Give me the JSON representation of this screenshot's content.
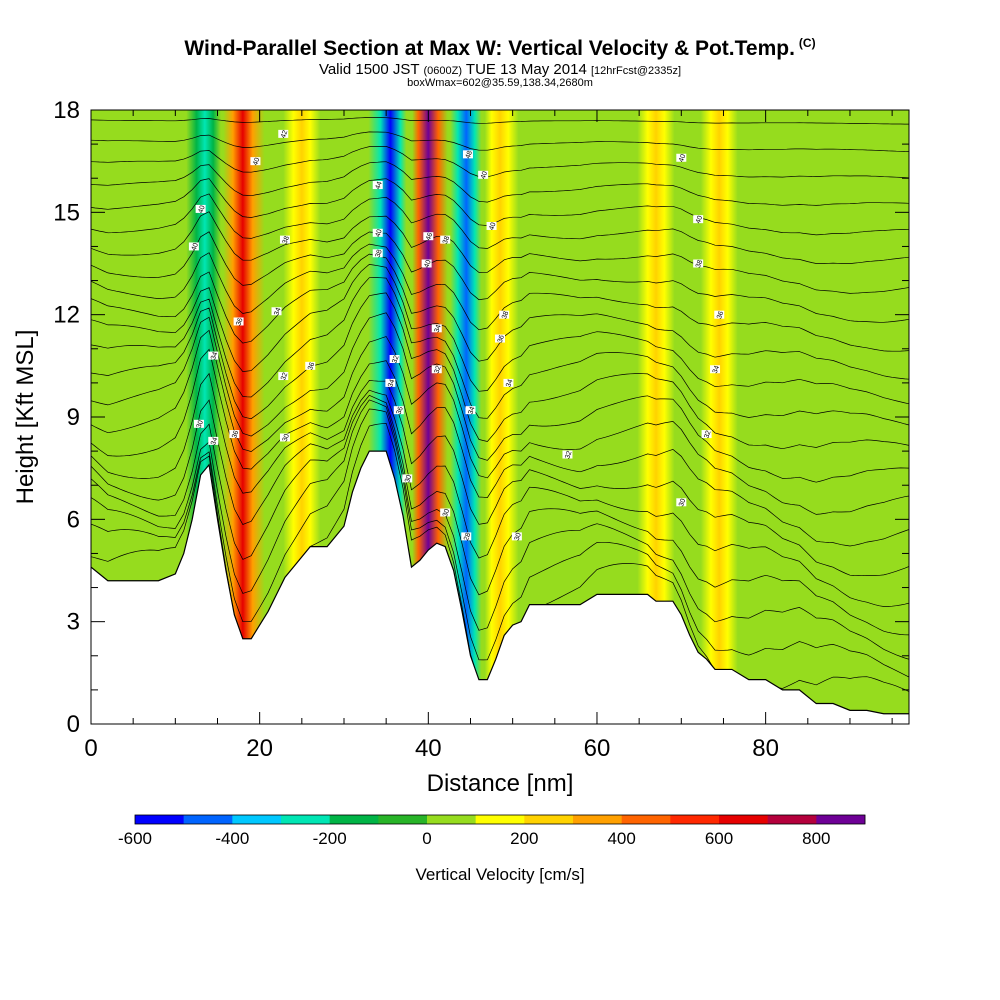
{
  "title": {
    "main": "Wind-Parallel Section at Max W: Vertical Velocity & Pot.Temp.",
    "copyright": "(C)",
    "valid_prefix": "Valid 1500 JST",
    "valid_utc": "(0600Z)",
    "valid_date": "TUE 13 May 2014",
    "forecast": "[12hrFcst@2335z]",
    "box_info": "boxWmax=602@35.59,138.34,2680m"
  },
  "chart_data": {
    "type": "heatmap",
    "xlabel": "Distance [nm]",
    "ylabel": "Height [Kft MSL]",
    "xlim": [
      0,
      97
    ],
    "ylim": [
      0,
      18
    ],
    "x_ticks": [
      0,
      20,
      40,
      60,
      80
    ],
    "y_ticks": [
      0,
      3,
      6,
      9,
      12,
      15,
      18
    ],
    "colorbar": {
      "label": "Vertical Velocity [cm/s]",
      "min": -600,
      "max": 900,
      "step": 100,
      "tick_values": [
        -600,
        -400,
        -200,
        0,
        200,
        400,
        600,
        800
      ],
      "colors": [
        "#0000ff",
        "#0064ff",
        "#00c8ff",
        "#00e6b4",
        "#00b446",
        "#28b428",
        "#96dc1e",
        "#ffff00",
        "#ffd200",
        "#ffa000",
        "#ff6400",
        "#ff2800",
        "#e60000",
        "#b4003c",
        "#6e0096"
      ]
    },
    "background_class": "0 to 100",
    "velocity_bands": [
      {
        "center": 13.5,
        "value": -300,
        "label": "downdraft"
      },
      {
        "center": 18.0,
        "value": 650,
        "label": "updraft"
      },
      {
        "center": 25.0,
        "value": 250,
        "label": "updraft"
      },
      {
        "center": 35.5,
        "value": -600,
        "label": "downdraft"
      },
      {
        "center": 40.0,
        "value": 850,
        "label": "updraft"
      },
      {
        "center": 44.5,
        "value": -450,
        "label": "downdraft"
      },
      {
        "center": 48.5,
        "value": 250,
        "label": "updraft"
      },
      {
        "center": 67.0,
        "value": 200,
        "label": "updraft"
      },
      {
        "center": 74.5,
        "value": 250,
        "label": "updraft"
      }
    ],
    "terrain": [
      [
        0,
        4.6
      ],
      [
        2,
        4.2
      ],
      [
        4,
        4.2
      ],
      [
        6,
        4.2
      ],
      [
        8,
        4.2
      ],
      [
        10,
        4.4
      ],
      [
        11,
        5.0
      ],
      [
        12,
        6.0
      ],
      [
        13,
        7.3
      ],
      [
        14,
        7.6
      ],
      [
        15,
        6.0
      ],
      [
        16,
        4.5
      ],
      [
        17,
        3.2
      ],
      [
        18,
        2.5
      ],
      [
        19,
        2.5
      ],
      [
        20,
        2.9
      ],
      [
        21,
        3.3
      ],
      [
        22,
        3.8
      ],
      [
        23,
        4.3
      ],
      [
        24,
        4.6
      ],
      [
        25,
        4.9
      ],
      [
        26,
        5.2
      ],
      [
        28,
        5.2
      ],
      [
        30,
        5.8
      ],
      [
        31,
        6.8
      ],
      [
        32,
        7.5
      ],
      [
        33,
        8.0
      ],
      [
        35,
        8.0
      ],
      [
        36,
        7.2
      ],
      [
        37,
        6.1
      ],
      [
        38,
        4.6
      ],
      [
        39,
        4.8
      ],
      [
        40,
        5.1
      ],
      [
        41,
        5.3
      ],
      [
        42,
        5.2
      ],
      [
        43,
        4.5
      ],
      [
        44,
        3.3
      ],
      [
        45,
        2.0
      ],
      [
        46,
        1.3
      ],
      [
        47,
        1.3
      ],
      [
        48,
        1.9
      ],
      [
        49,
        2.6
      ],
      [
        50,
        2.9
      ],
      [
        51,
        3.0
      ],
      [
        52,
        3.5
      ],
      [
        54,
        3.5
      ],
      [
        56,
        3.5
      ],
      [
        58,
        3.5
      ],
      [
        60,
        3.8
      ],
      [
        62,
        3.8
      ],
      [
        64,
        3.8
      ],
      [
        66,
        3.8
      ],
      [
        67,
        3.6
      ],
      [
        69,
        3.6
      ],
      [
        70,
        3.2
      ],
      [
        71,
        2.6
      ],
      [
        72,
        2.1
      ],
      [
        73,
        1.9
      ],
      [
        74,
        1.6
      ],
      [
        76,
        1.6
      ],
      [
        78,
        1.3
      ],
      [
        80,
        1.3
      ],
      [
        82,
        1.0
      ],
      [
        84,
        1.0
      ],
      [
        86,
        0.6
      ],
      [
        88,
        0.6
      ],
      [
        90,
        0.4
      ],
      [
        92,
        0.4
      ],
      [
        94,
        0.3
      ],
      [
        97,
        0.3
      ]
    ],
    "contours": {
      "variable": "potential temperature",
      "labels": [
        {
          "x": 13.0,
          "y": 15.1,
          "text": "40"
        },
        {
          "x": 12.2,
          "y": 14.0,
          "text": "40"
        },
        {
          "x": 19.5,
          "y": 16.5,
          "text": "40"
        },
        {
          "x": 22.8,
          "y": 17.3,
          "text": "42"
        },
        {
          "x": 23.0,
          "y": 14.2,
          "text": "38"
        },
        {
          "x": 22.0,
          "y": 12.1,
          "text": "34"
        },
        {
          "x": 17.5,
          "y": 11.8,
          "text": "36"
        },
        {
          "x": 14.5,
          "y": 10.8,
          "text": "34"
        },
        {
          "x": 26.0,
          "y": 10.5,
          "text": "36"
        },
        {
          "x": 22.8,
          "y": 10.2,
          "text": "32"
        },
        {
          "x": 12.8,
          "y": 8.8,
          "text": "30"
        },
        {
          "x": 14.5,
          "y": 8.3,
          "text": "34"
        },
        {
          "x": 17.0,
          "y": 8.5,
          "text": "36"
        },
        {
          "x": 23.0,
          "y": 8.4,
          "text": "30"
        },
        {
          "x": 34.0,
          "y": 15.8,
          "text": "44"
        },
        {
          "x": 34.0,
          "y": 14.4,
          "text": "40"
        },
        {
          "x": 34.0,
          "y": 13.8,
          "text": "38"
        },
        {
          "x": 36.0,
          "y": 10.7,
          "text": "32"
        },
        {
          "x": 35.5,
          "y": 10.0,
          "text": "34"
        },
        {
          "x": 36.5,
          "y": 9.2,
          "text": "36"
        },
        {
          "x": 37.5,
          "y": 7.2,
          "text": "30"
        },
        {
          "x": 40.0,
          "y": 14.3,
          "text": "46"
        },
        {
          "x": 39.8,
          "y": 13.5,
          "text": "40"
        },
        {
          "x": 41.0,
          "y": 11.6,
          "text": "34"
        },
        {
          "x": 41.0,
          "y": 10.4,
          "text": "32"
        },
        {
          "x": 42.0,
          "y": 14.2,
          "text": "38"
        },
        {
          "x": 44.7,
          "y": 16.7,
          "text": "48"
        },
        {
          "x": 46.5,
          "y": 16.1,
          "text": "40"
        },
        {
          "x": 47.5,
          "y": 14.6,
          "text": "40"
        },
        {
          "x": 49.0,
          "y": 12.0,
          "text": "38"
        },
        {
          "x": 48.5,
          "y": 11.3,
          "text": "36"
        },
        {
          "x": 49.5,
          "y": 10.0,
          "text": "34"
        },
        {
          "x": 45.0,
          "y": 9.2,
          "text": "34"
        },
        {
          "x": 42.0,
          "y": 6.2,
          "text": "30"
        },
        {
          "x": 44.5,
          "y": 5.5,
          "text": "28"
        },
        {
          "x": 50.5,
          "y": 5.5,
          "text": "30"
        },
        {
          "x": 56.5,
          "y": 7.9,
          "text": "32"
        },
        {
          "x": 70.0,
          "y": 16.6,
          "text": "40"
        },
        {
          "x": 72.0,
          "y": 14.8,
          "text": "40"
        },
        {
          "x": 72.0,
          "y": 13.5,
          "text": "38"
        },
        {
          "x": 74.5,
          "y": 12.0,
          "text": "36"
        },
        {
          "x": 74.0,
          "y": 10.4,
          "text": "34"
        },
        {
          "x": 73.0,
          "y": 8.5,
          "text": "32"
        },
        {
          "x": 70.0,
          "y": 6.5,
          "text": "30"
        }
      ]
    }
  }
}
